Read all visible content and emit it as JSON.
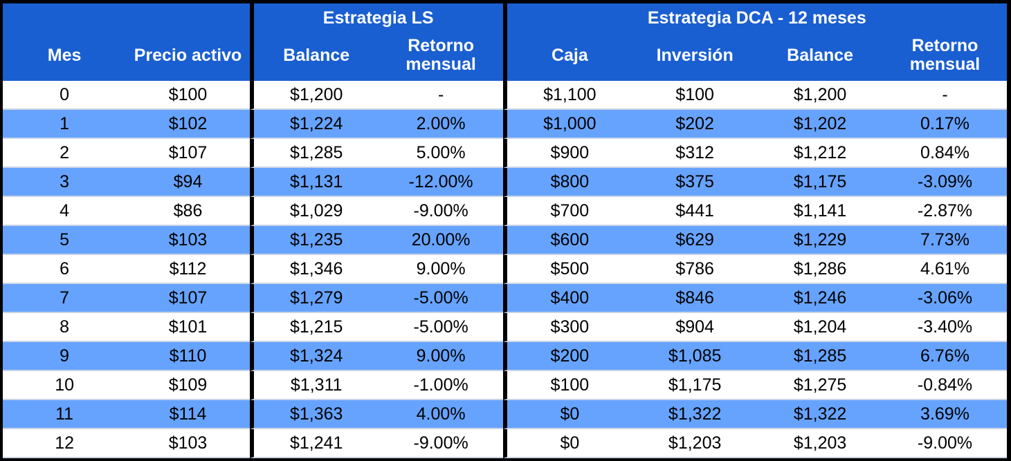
{
  "chart_data": {
    "type": "table",
    "groups": {
      "ls": "Estrategia LS",
      "dca": "Estrategia DCA - 12 meses"
    },
    "headers": {
      "mes": "Mes",
      "precio": "Precio activo",
      "ls_balance": "Balance",
      "ls_retorno_1": "Retorno",
      "ls_retorno_2": "mensual",
      "caja": "Caja",
      "inversion": "Inversión",
      "dca_balance": "Balance",
      "dca_retorno_1": "Retorno",
      "dca_retorno_2": "mensual"
    },
    "rows": [
      [
        "0",
        "$100",
        "$1,200",
        "-",
        "$1,100",
        "$100",
        "$1,200",
        "-"
      ],
      [
        "1",
        "$102",
        "$1,224",
        "2.00%",
        "$1,000",
        "$202",
        "$1,202",
        "0.17%"
      ],
      [
        "2",
        "$107",
        "$1,285",
        "5.00%",
        "$900",
        "$312",
        "$1,212",
        "0.84%"
      ],
      [
        "3",
        "$94",
        "$1,131",
        "-12.00%",
        "$800",
        "$375",
        "$1,175",
        "-3.09%"
      ],
      [
        "4",
        "$86",
        "$1,029",
        "-9.00%",
        "$700",
        "$441",
        "$1,141",
        "-2.87%"
      ],
      [
        "5",
        "$103",
        "$1,235",
        "20.00%",
        "$600",
        "$629",
        "$1,229",
        "7.73%"
      ],
      [
        "6",
        "$112",
        "$1,346",
        "9.00%",
        "$500",
        "$786",
        "$1,286",
        "4.61%"
      ],
      [
        "7",
        "$107",
        "$1,279",
        "-5.00%",
        "$400",
        "$846",
        "$1,246",
        "-3.06%"
      ],
      [
        "8",
        "$101",
        "$1,215",
        "-5.00%",
        "$300",
        "$904",
        "$1,204",
        "-3.40%"
      ],
      [
        "9",
        "$110",
        "$1,324",
        "9.00%",
        "$200",
        "$1,085",
        "$1,285",
        "6.76%"
      ],
      [
        "10",
        "$109",
        "$1,311",
        "-1.00%",
        "$100",
        "$1,175",
        "$1,275",
        "-0.84%"
      ],
      [
        "11",
        "$114",
        "$1,363",
        "4.00%",
        "$0",
        "$1,322",
        "$1,322",
        "3.69%"
      ],
      [
        "12",
        "$103",
        "$1,241",
        "-9.00%",
        "$0",
        "$1,203",
        "$1,203",
        "-9.00%"
      ]
    ],
    "colors": {
      "header_bg": "#1a5fd1",
      "band_bg": "#66a3ff",
      "plain_bg": "#ffffff",
      "separator": "#000000"
    }
  }
}
